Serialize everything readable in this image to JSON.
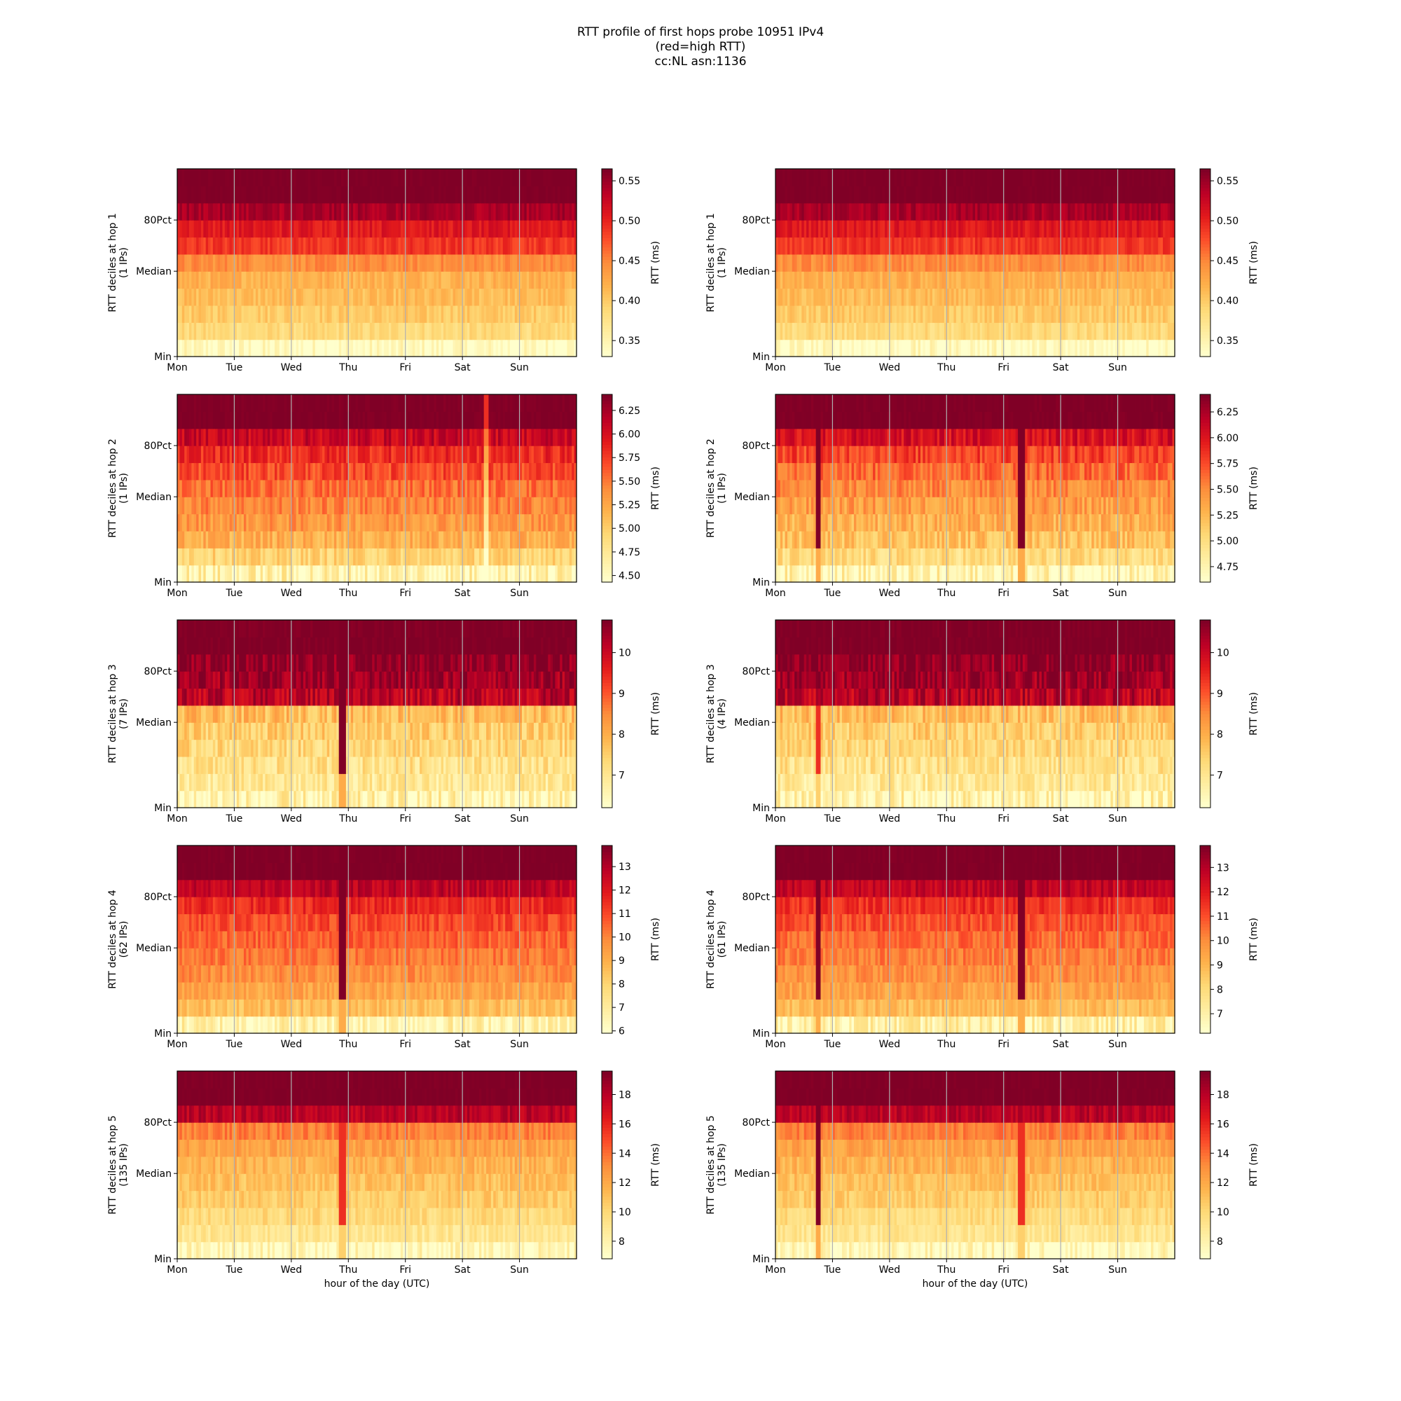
{
  "title_lines": [
    "RTT profile of first hops probe 10951 IPv4",
    "(red=high RTT)",
    "cc:NL asn:1136"
  ],
  "chart_data": [
    {
      "type": "heatmap",
      "column": "left",
      "hop": 1,
      "ylabel": "RTT deciles at hop 1",
      "ylabel2": "(1 IPs)",
      "xlabel": "",
      "x_ticks": [
        "Mon",
        "Tue",
        "Wed",
        "Thu",
        "Fri",
        "Sat",
        "Sun"
      ],
      "y_ticks": [
        "Min",
        "Median",
        "80Pct"
      ],
      "colorbar": {
        "label": "RTT (ms)",
        "min": 0.33,
        "max": 0.565,
        "ticks": [
          0.35,
          0.4,
          0.45,
          0.5,
          0.55
        ],
        "tick_labels": [
          "0.35",
          "0.40",
          "0.45",
          "0.50",
          "0.55"
        ]
      },
      "decile_rtt": [
        0.335,
        0.385,
        0.4,
        0.41,
        0.42,
        0.445,
        0.49,
        0.51,
        0.545,
        0.565
      ],
      "noise": 0.12,
      "spikes": []
    },
    {
      "type": "heatmap",
      "column": "right",
      "hop": 1,
      "ylabel": "RTT deciles at hop 1",
      "ylabel2": "(1 IPs)",
      "xlabel": "",
      "x_ticks": [
        "Mon",
        "Tue",
        "Wed",
        "Thu",
        "Fri",
        "Sat",
        "Sun"
      ],
      "y_ticks": [
        "Min",
        "Median",
        "80Pct"
      ],
      "colorbar": {
        "label": "RTT (ms)",
        "min": 0.33,
        "max": 0.565,
        "ticks": [
          0.35,
          0.4,
          0.45,
          0.5,
          0.55
        ],
        "tick_labels": [
          "0.35",
          "0.40",
          "0.45",
          "0.50",
          "0.55"
        ]
      },
      "decile_rtt": [
        0.335,
        0.385,
        0.4,
        0.41,
        0.42,
        0.445,
        0.49,
        0.51,
        0.545,
        0.565
      ],
      "noise": 0.12,
      "spikes": []
    },
    {
      "type": "heatmap",
      "column": "left",
      "hop": 2,
      "ylabel": "RTT deciles at hop 2",
      "ylabel2": "(1 IPs)",
      "xlabel": "",
      "x_ticks": [
        "Mon",
        "Tue",
        "Wed",
        "Thu",
        "Fri",
        "Sat",
        "Sun"
      ],
      "y_ticks": [
        "Min",
        "Median",
        "80Pct"
      ],
      "colorbar": {
        "label": "RTT (ms)",
        "min": 4.43,
        "max": 6.42,
        "ticks": [
          4.5,
          4.75,
          5.0,
          5.25,
          5.5,
          5.75,
          6.0,
          6.25
        ],
        "tick_labels": [
          "4.50",
          "4.75",
          "5.00",
          "5.25",
          "5.50",
          "5.75",
          "6.00",
          "6.25"
        ]
      },
      "decile_rtt": [
        4.6,
        4.95,
        5.2,
        5.35,
        5.45,
        5.55,
        5.7,
        5.85,
        6.1,
        6.42
      ],
      "noise": 0.18,
      "spikes": [
        {
          "day": 5.4,
          "kind": "low"
        }
      ]
    },
    {
      "type": "heatmap",
      "column": "right",
      "hop": 2,
      "ylabel": "RTT deciles at hop 2",
      "ylabel2": "(1 IPs)",
      "xlabel": "",
      "x_ticks": [
        "Mon",
        "Tue",
        "Wed",
        "Thu",
        "Fri",
        "Sat",
        "Sun"
      ],
      "y_ticks": [
        "Min",
        "Median",
        "80Pct"
      ],
      "colorbar": {
        "label": "RTT (ms)",
        "min": 4.6,
        "max": 6.42,
        "ticks": [
          4.75,
          5.0,
          5.25,
          5.5,
          5.75,
          6.0,
          6.25
        ],
        "tick_labels": [
          "4.75",
          "5.00",
          "5.25",
          "5.50",
          "5.75",
          "6.00",
          "6.25"
        ]
      },
      "decile_rtt": [
        4.7,
        5.0,
        5.2,
        5.3,
        5.4,
        5.5,
        5.65,
        5.8,
        6.05,
        6.42
      ],
      "noise": 0.2,
      "spikes": [
        {
          "day": 0.72,
          "kind": "high"
        },
        {
          "day": 4.3,
          "kind": "high"
        }
      ]
    },
    {
      "type": "heatmap",
      "column": "left",
      "hop": 3,
      "ylabel": "RTT deciles at hop 3",
      "ylabel2": "(7 IPs)",
      "xlabel": "",
      "x_ticks": [
        "Mon",
        "Tue",
        "Wed",
        "Thu",
        "Fri",
        "Sat",
        "Sun"
      ],
      "y_ticks": [
        "Min",
        "Median",
        "80Pct"
      ],
      "colorbar": {
        "label": "RTT (ms)",
        "min": 6.2,
        "max": 10.8,
        "ticks": [
          7,
          8,
          9,
          10
        ],
        "tick_labels": [
          "7",
          "8",
          "9",
          "10"
        ]
      },
      "decile_rtt": [
        6.4,
        6.9,
        7.1,
        7.3,
        7.5,
        7.8,
        10.2,
        10.5,
        10.7,
        10.8
      ],
      "noise": 0.22,
      "spikes": [
        {
          "day": 2.88,
          "kind": "high"
        }
      ]
    },
    {
      "type": "heatmap",
      "column": "right",
      "hop": 3,
      "ylabel": "RTT deciles at hop 3",
      "ylabel2": "(4 IPs)",
      "xlabel": "",
      "x_ticks": [
        "Mon",
        "Tue",
        "Wed",
        "Thu",
        "Fri",
        "Sat",
        "Sun"
      ],
      "y_ticks": [
        "Min",
        "Median",
        "80Pct"
      ],
      "colorbar": {
        "label": "RTT (ms)",
        "min": 6.2,
        "max": 10.8,
        "ticks": [
          7,
          8,
          9,
          10
        ],
        "tick_labels": [
          "7",
          "8",
          "9",
          "10"
        ]
      },
      "decile_rtt": [
        6.4,
        6.9,
        7.1,
        7.3,
        7.5,
        7.8,
        10.2,
        10.5,
        10.7,
        10.8
      ],
      "noise": 0.22,
      "spikes": [
        {
          "day": 0.72,
          "kind": "mid"
        }
      ]
    },
    {
      "type": "heatmap",
      "column": "left",
      "hop": 4,
      "ylabel": "RTT deciles at hop 4",
      "ylabel2": "(62 IPs)",
      "xlabel": "",
      "x_ticks": [
        "Mon",
        "Tue",
        "Wed",
        "Thu",
        "Fri",
        "Sat",
        "Sun"
      ],
      "y_ticks": [
        "Min",
        "Median",
        "80Pct"
      ],
      "colorbar": {
        "label": "RTT (ms)",
        "min": 5.9,
        "max": 13.9,
        "ticks": [
          6,
          7,
          8,
          9,
          10,
          11,
          12,
          13
        ],
        "tick_labels": [
          "6",
          "7",
          "8",
          "9",
          "10",
          "11",
          "12",
          "13"
        ]
      },
      "decile_rtt": [
        6.6,
        8.6,
        9.3,
        9.8,
        10.2,
        10.6,
        11.0,
        11.6,
        12.8,
        13.9
      ],
      "noise": 0.15,
      "spikes": [
        {
          "day": 2.88,
          "kind": "high"
        }
      ]
    },
    {
      "type": "heatmap",
      "column": "right",
      "hop": 4,
      "ylabel": "RTT deciles at hop 4",
      "ylabel2": "(61 IPs)",
      "xlabel": "",
      "x_ticks": [
        "Mon",
        "Tue",
        "Wed",
        "Thu",
        "Fri",
        "Sat",
        "Sun"
      ],
      "y_ticks": [
        "Min",
        "Median",
        "80Pct"
      ],
      "colorbar": {
        "label": "RTT (ms)",
        "min": 6.2,
        "max": 13.9,
        "ticks": [
          7,
          8,
          9,
          10,
          11,
          12,
          13
        ],
        "tick_labels": [
          "7",
          "8",
          "9",
          "10",
          "11",
          "12",
          "13"
        ]
      },
      "decile_rtt": [
        7.0,
        8.9,
        9.5,
        9.9,
        10.3,
        10.6,
        11.0,
        11.6,
        12.8,
        13.9
      ],
      "noise": 0.15,
      "spikes": [
        {
          "day": 0.72,
          "kind": "high"
        },
        {
          "day": 4.3,
          "kind": "high"
        }
      ]
    },
    {
      "type": "heatmap",
      "column": "left",
      "hop": 5,
      "ylabel": "RTT deciles at hop 5",
      "ylabel2": "(135 IPs)",
      "xlabel": "hour of the day (UTC)",
      "x_ticks": [
        "Mon",
        "Tue",
        "Wed",
        "Thu",
        "Fri",
        "Sat",
        "Sun"
      ],
      "y_ticks": [
        "Min",
        "Median",
        "80Pct"
      ],
      "colorbar": {
        "label": "RTT (ms)",
        "min": 6.8,
        "max": 19.6,
        "ticks": [
          8,
          10,
          12,
          14,
          16,
          18
        ],
        "tick_labels": [
          "8",
          "10",
          "12",
          "14",
          "16",
          "18"
        ]
      },
      "decile_rtt": [
        7.3,
        9.0,
        9.8,
        10.5,
        11.0,
        11.6,
        12.3,
        13.5,
        18.0,
        19.6
      ],
      "noise": 0.14,
      "spikes": [
        {
          "day": 2.88,
          "kind": "mid"
        }
      ]
    },
    {
      "type": "heatmap",
      "column": "right",
      "hop": 5,
      "ylabel": "RTT deciles at hop 5",
      "ylabel2": "(135 IPs)",
      "xlabel": "hour of the day (UTC)",
      "x_ticks": [
        "Mon",
        "Tue",
        "Wed",
        "Thu",
        "Fri",
        "Sat",
        "Sun"
      ],
      "y_ticks": [
        "Min",
        "Median",
        "80Pct"
      ],
      "colorbar": {
        "label": "RTT (ms)",
        "min": 6.8,
        "max": 19.6,
        "ticks": [
          8,
          10,
          12,
          14,
          16,
          18
        ],
        "tick_labels": [
          "8",
          "10",
          "12",
          "14",
          "16",
          "18"
        ]
      },
      "decile_rtt": [
        7.3,
        9.0,
        9.8,
        10.5,
        11.0,
        11.6,
        12.3,
        13.5,
        18.0,
        19.6
      ],
      "noise": 0.14,
      "spikes": [
        {
          "day": 0.72,
          "kind": "high"
        },
        {
          "day": 4.3,
          "kind": "mid"
        }
      ]
    }
  ],
  "colormap": [
    "#ffffcc",
    "#ffeda0",
    "#fed976",
    "#feb24c",
    "#fd8d3c",
    "#fc4e2a",
    "#e31a1c",
    "#bd0026",
    "#800026"
  ]
}
